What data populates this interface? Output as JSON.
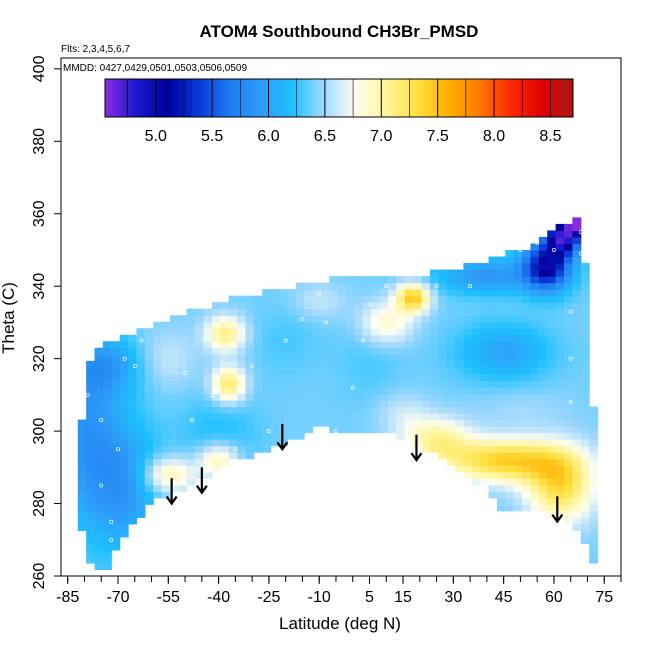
{
  "chart_data": {
    "type": "heatmap",
    "title": "ATOM4 Southbound CH3Br_PMSD",
    "subtitle_flights": "Flts: 2,3,4,5,6,7",
    "subtitle_dates": "MMDD: 0427,0429,0501,0503,0506,0509",
    "xlabel": "Latitude (deg N)",
    "ylabel": "Theta (C)",
    "xlim": [
      -87,
      80
    ],
    "ylim": [
      260,
      403
    ],
    "x_ticks": [
      -85,
      -70,
      -55,
      -40,
      -25,
      -10,
      5,
      15,
      30,
      45,
      60,
      75
    ],
    "x_tick_labels": [
      "-85",
      "-70",
      "-55",
      "-40",
      "-25",
      "-10",
      "5",
      "15",
      "30",
      "45",
      "60",
      "75"
    ],
    "y_ticks": [
      260,
      280,
      300,
      320,
      340,
      360,
      380,
      400
    ],
    "y_tick_labels": [
      "260",
      "280",
      "300",
      "320",
      "340",
      "360",
      "380",
      "400"
    ],
    "colorbar": {
      "range": [
        4.55,
        8.7
      ],
      "ticks": [
        5.0,
        5.5,
        6.0,
        6.5,
        7.0,
        7.5,
        8.0,
        8.5
      ],
      "tick_labels": [
        "5.0",
        "5.5",
        "6.0",
        "6.5",
        "7.0",
        "7.5",
        "8.0",
        "8.5"
      ],
      "colors": [
        "#8a2be2",
        "#1a1ad0",
        "#00009a",
        "#0a3ad8",
        "#1e7cf0",
        "#2e9cf8",
        "#1ec0ff",
        "#9fd8ff",
        "#fdfdf2",
        "#fff59a",
        "#ffe040",
        "#ffb000",
        "#ff7a00",
        "#ff2a00",
        "#e00000",
        "#a81818"
      ]
    },
    "boundary": [
      [
        -82,
        282
      ],
      [
        -81,
        300
      ],
      [
        -80,
        316
      ],
      [
        -76,
        322
      ],
      [
        -72,
        325
      ],
      [
        -66,
        327
      ],
      [
        -60,
        329
      ],
      [
        -55,
        331
      ],
      [
        -50,
        333
      ],
      [
        -45,
        334
      ],
      [
        -40,
        336
      ],
      [
        -30,
        338
      ],
      [
        -20,
        339
      ],
      [
        -15,
        341
      ],
      [
        -10,
        341
      ],
      [
        -5,
        343
      ],
      [
        5,
        343
      ],
      [
        15,
        343
      ],
      [
        25,
        344
      ],
      [
        35,
        346
      ],
      [
        45,
        349
      ],
      [
        52,
        350
      ],
      [
        58,
        354
      ],
      [
        64,
        358
      ],
      [
        68,
        359
      ],
      [
        71,
        330
      ],
      [
        72,
        300
      ],
      [
        73,
        275
      ],
      [
        72,
        264
      ],
      [
        65,
        275
      ],
      [
        55,
        278
      ],
      [
        45,
        277
      ],
      [
        40,
        284
      ],
      [
        30,
        290
      ],
      [
        20,
        296
      ],
      [
        10,
        300
      ],
      [
        0,
        299
      ],
      [
        -10,
        301
      ],
      [
        -15,
        298
      ],
      [
        -25,
        295
      ],
      [
        -35,
        292
      ],
      [
        -45,
        287
      ],
      [
        -52,
        283
      ],
      [
        -57,
        282
      ],
      [
        -62,
        278
      ],
      [
        -66,
        275
      ],
      [
        -70,
        269
      ],
      [
        -72,
        262
      ],
      [
        -77,
        262
      ],
      [
        -80,
        266
      ]
    ],
    "field_features": [
      {
        "x": -80,
        "y": 300,
        "value": 5.9,
        "sx": 10,
        "sy": 25
      },
      {
        "x": -68,
        "y": 285,
        "value": 5.9,
        "sx": 10,
        "sy": 18
      },
      {
        "x": -73,
        "y": 318,
        "value": 6.0,
        "sx": 10,
        "sy": 8
      },
      {
        "x": -40,
        "y": 300,
        "value": 6.2,
        "sx": 12,
        "sy": 10
      },
      {
        "x": -38,
        "y": 327,
        "value": 7.1,
        "sx": 6,
        "sy": 5
      },
      {
        "x": -37,
        "y": 313,
        "value": 7.2,
        "sx": 5,
        "sy": 5
      },
      {
        "x": -55,
        "y": 320,
        "value": 6.6,
        "sx": 8,
        "sy": 8
      },
      {
        "x": -55,
        "y": 288,
        "value": 7.0,
        "sx": 8,
        "sy": 5
      },
      {
        "x": -40,
        "y": 292,
        "value": 7.0,
        "sx": 6,
        "sy": 5
      },
      {
        "x": -20,
        "y": 325,
        "value": 6.3,
        "sx": 10,
        "sy": 10
      },
      {
        "x": -10,
        "y": 336,
        "value": 6.6,
        "sx": 8,
        "sy": 5
      },
      {
        "x": 5,
        "y": 320,
        "value": 6.3,
        "sx": 10,
        "sy": 12
      },
      {
        "x": 18,
        "y": 337,
        "value": 7.45,
        "sx": 5,
        "sy": 4
      },
      {
        "x": 10,
        "y": 330,
        "value": 6.9,
        "sx": 8,
        "sy": 6
      },
      {
        "x": 40,
        "y": 343,
        "value": 5.9,
        "sx": 16,
        "sy": 5
      },
      {
        "x": 58,
        "y": 346,
        "value": 5.1,
        "sx": 7,
        "sy": 7
      },
      {
        "x": 63,
        "y": 354,
        "value": 4.9,
        "sx": 5,
        "sy": 5
      },
      {
        "x": 67,
        "y": 358,
        "value": 4.6,
        "sx": 3,
        "sy": 3
      },
      {
        "x": 45,
        "y": 322,
        "value": 6.0,
        "sx": 14,
        "sy": 8
      },
      {
        "x": 50,
        "y": 306,
        "value": 6.5,
        "sx": 14,
        "sy": 6
      },
      {
        "x": 45,
        "y": 292,
        "value": 7.4,
        "sx": 18,
        "sy": 6
      },
      {
        "x": 62,
        "y": 285,
        "value": 7.3,
        "sx": 10,
        "sy": 10
      },
      {
        "x": 25,
        "y": 298,
        "value": 7.0,
        "sx": 10,
        "sy": 6
      },
      {
        "x": 15,
        "y": 305,
        "value": 6.6,
        "sx": 8,
        "sy": 6
      }
    ],
    "background_value": 6.4,
    "arrows": [
      {
        "x": -54,
        "y_top": 287,
        "y_tip": 280
      },
      {
        "x": -45,
        "y_top": 290,
        "y_tip": 283
      },
      {
        "x": -21,
        "y_top": 302,
        "y_tip": 295
      },
      {
        "x": 19,
        "y_top": 299,
        "y_tip": 292
      },
      {
        "x": 61,
        "y_top": 282,
        "y_tip": 275
      }
    ],
    "sample_points": [
      [
        -79,
        310
      ],
      [
        -75,
        303
      ],
      [
        -70,
        295
      ],
      [
        -75,
        285
      ],
      [
        -72,
        275
      ],
      [
        -72,
        270
      ],
      [
        -68,
        320
      ],
      [
        -63,
        325
      ],
      [
        -65,
        318
      ],
      [
        -50,
        316
      ],
      [
        -48,
        303
      ],
      [
        -42,
        310
      ],
      [
        -35,
        295
      ],
      [
        -30,
        318
      ],
      [
        -25,
        300
      ],
      [
        -20,
        325
      ],
      [
        -15,
        331
      ],
      [
        -10,
        338
      ],
      [
        -8,
        330
      ],
      [
        -5,
        300
      ],
      [
        0,
        312
      ],
      [
        3,
        325
      ],
      [
        5,
        335
      ],
      [
        10,
        340
      ],
      [
        12,
        333
      ],
      [
        18,
        340
      ],
      [
        25,
        340
      ],
      [
        35,
        340
      ],
      [
        50,
        350
      ],
      [
        55,
        352
      ],
      [
        60,
        350
      ],
      [
        68,
        355
      ],
      [
        68,
        349
      ],
      [
        65,
        333
      ],
      [
        65,
        320
      ],
      [
        65,
        308
      ],
      [
        66,
        296
      ]
    ]
  }
}
